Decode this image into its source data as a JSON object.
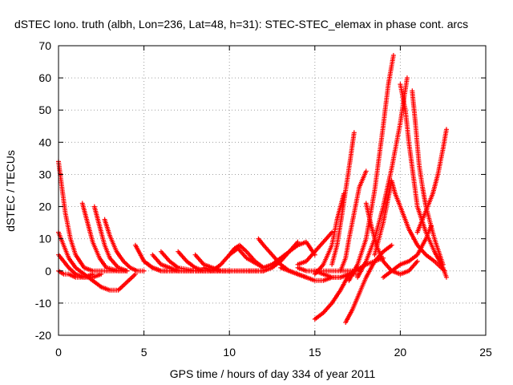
{
  "chart_data": {
    "type": "scatter",
    "title": "dSTEC Iono. truth (albh, Lon=236, Lat=48, h=31): STEC-STEC_elemax in phase cont. arcs",
    "xlabel": "GPS time / hours of day 334 of year 2011",
    "ylabel": "dSTEC  / TECUs",
    "xlim": [
      0,
      25
    ],
    "ylim": [
      -20,
      70
    ],
    "xticks": [
      0,
      5,
      10,
      15,
      20,
      25
    ],
    "yticks": [
      -20,
      -10,
      0,
      10,
      20,
      30,
      40,
      50,
      60,
      70
    ],
    "grid": true,
    "marker": "+",
    "color": "#ff0000",
    "series": [
      {
        "x": [
          0.0,
          0.2,
          0.4,
          0.7,
          1.0,
          1.5,
          2.0,
          3.0,
          4.0
        ],
        "y": [
          34,
          26,
          18,
          10,
          5,
          1,
          0,
          0,
          0
        ]
      },
      {
        "x": [
          0.0,
          0.3,
          0.6,
          1.0,
          1.5,
          2.0,
          2.5,
          3.0,
          3.5,
          4.5
        ],
        "y": [
          12,
          8,
          4,
          1,
          -1,
          -3,
          -5,
          -6,
          -6,
          -1
        ]
      },
      {
        "x": [
          0.0,
          0.3,
          0.6,
          1.0,
          1.5,
          2.0,
          2.5
        ],
        "y": [
          5,
          3,
          1,
          -1,
          -2,
          -2,
          -1
        ]
      },
      {
        "x": [
          0.0,
          0.3,
          0.6,
          1.0,
          1.5,
          2.0
        ],
        "y": [
          0,
          -1,
          -1,
          -2,
          -2,
          -1
        ]
      },
      {
        "x": [
          1.4,
          1.7,
          2.0,
          2.4,
          2.8,
          3.5,
          4.0
        ],
        "y": [
          21,
          15,
          9,
          4,
          1,
          0,
          0
        ]
      },
      {
        "x": [
          2.1,
          2.4,
          2.7,
          3.0,
          3.5,
          4.0
        ],
        "y": [
          20,
          14,
          8,
          4,
          1,
          0
        ]
      },
      {
        "x": [
          2.7,
          3.0,
          3.4,
          3.8,
          4.2,
          4.6,
          5.0
        ],
        "y": [
          16,
          11,
          6,
          3,
          1,
          0,
          0
        ]
      },
      {
        "x": [
          4.5,
          5.0,
          5.5,
          6.0,
          7.0,
          8.0,
          9.0
        ],
        "y": [
          8,
          3,
          1,
          0,
          0,
          0,
          0
        ]
      },
      {
        "x": [
          5.0,
          5.5,
          6.0,
          7.0,
          8.0,
          9.0,
          10.0
        ],
        "y": [
          3,
          1,
          0,
          0,
          0,
          0,
          0
        ]
      },
      {
        "x": [
          5.5,
          6.0,
          6.5,
          7.0,
          8.0,
          9.0
        ],
        "y": [
          5,
          2,
          1,
          0,
          0,
          0
        ]
      },
      {
        "x": [
          6.0,
          6.5,
          7.0,
          8.0,
          9.0,
          10.0
        ],
        "y": [
          6,
          3,
          1,
          0,
          0,
          0
        ]
      },
      {
        "x": [
          7.0,
          7.5,
          8.0,
          8.5,
          9.0,
          10.0
        ],
        "y": [
          6,
          3,
          1,
          0,
          0,
          0
        ]
      },
      {
        "x": [
          8.0,
          8.5,
          9.0,
          9.5,
          10.0,
          11.0,
          12.0
        ],
        "y": [
          5,
          2,
          1,
          0,
          0,
          0,
          0
        ]
      },
      {
        "x": [
          8.5,
          9.0,
          9.5,
          10.0,
          10.5,
          11.0,
          12.0
        ],
        "y": [
          1,
          0,
          0,
          0,
          0,
          0,
          0
        ]
      },
      {
        "x": [
          9.0,
          9.5,
          10.0,
          10.5,
          11.0,
          12.0
        ],
        "y": [
          0,
          2,
          5,
          7,
          4,
          1
        ]
      },
      {
        "x": [
          10.0,
          10.3,
          10.6,
          11.0,
          11.5,
          12.0
        ],
        "y": [
          5,
          7,
          8,
          6,
          3,
          1
        ]
      },
      {
        "x": [
          11.0,
          11.5,
          12.0,
          12.5,
          13.0,
          13.5,
          14.0
        ],
        "y": [
          0,
          0,
          0,
          1,
          3,
          6,
          9
        ]
      },
      {
        "x": [
          11.7,
          12.0,
          12.5,
          13.0,
          13.5,
          14.0,
          14.5
        ],
        "y": [
          10,
          8,
          5,
          2,
          0,
          -1,
          -2
        ]
      },
      {
        "x": [
          12.0,
          12.5,
          13.0,
          13.5,
          14.0,
          14.5,
          15.0
        ],
        "y": [
          1,
          2,
          4,
          6,
          8,
          9,
          5
        ]
      },
      {
        "x": [
          13.0,
          13.5,
          14.0,
          14.5,
          15.0,
          15.5,
          16.0,
          16.5
        ],
        "y": [
          1,
          0,
          -1,
          -2,
          -3,
          -3,
          -2,
          -2
        ]
      },
      {
        "x": [
          14.0,
          14.5,
          15.0,
          15.5,
          16.0,
          16.5,
          17.0,
          17.5
        ],
        "y": [
          1,
          0,
          0,
          0,
          0,
          0,
          0,
          0
        ]
      },
      {
        "x": [
          14.0,
          14.5,
          15.0,
          15.5,
          16.0
        ],
        "y": [
          2,
          3,
          6,
          9,
          12
        ]
      },
      {
        "x": [
          15.0,
          15.5,
          16.0,
          16.3,
          16.7
        ],
        "y": [
          -1,
          2,
          8,
          16,
          24
        ]
      },
      {
        "x": [
          15.0,
          15.5,
          16.0,
          16.5,
          17.0,
          17.5
        ],
        "y": [
          0,
          -1,
          -2,
          -2,
          -1,
          -1
        ]
      },
      {
        "x": [
          15.0,
          15.5,
          16.0,
          16.5,
          17.0,
          18.0,
          19.0
        ],
        "y": [
          -15,
          -13,
          -10,
          -6,
          -1,
          2,
          4
        ]
      },
      {
        "x": [
          16.0,
          16.3,
          16.6,
          17.0,
          17.3
        ],
        "y": [
          2,
          8,
          18,
          32,
          43
        ]
      },
      {
        "x": [
          16.5,
          16.8,
          17.0,
          17.3,
          17.6,
          18.0
        ],
        "y": [
          0,
          4,
          10,
          18,
          26,
          31
        ]
      },
      {
        "x": [
          16.8,
          17.2,
          17.6,
          18.0,
          18.5,
          19.0,
          19.5
        ],
        "y": [
          -16,
          -12,
          -7,
          -2,
          3,
          6,
          8
        ]
      },
      {
        "x": [
          17.0,
          17.5,
          18.0,
          18.5,
          19.0,
          19.3,
          19.6
        ],
        "y": [
          -3,
          2,
          10,
          25,
          45,
          58,
          67
        ]
      },
      {
        "x": [
          17.5,
          18.0,
          18.5,
          19.0,
          19.5,
          20.0,
          20.4
        ],
        "y": [
          -2,
          3,
          10,
          20,
          32,
          46,
          60
        ]
      },
      {
        "x": [
          18.0,
          18.3,
          18.6,
          19.0,
          19.5,
          20.0,
          20.5,
          21.0
        ],
        "y": [
          21,
          14,
          8,
          3,
          0,
          -1,
          0,
          3
        ]
      },
      {
        "x": [
          18.5,
          19.0,
          19.5,
          19.7,
          20.0,
          20.5,
          21.0,
          21.5,
          22.0,
          22.6
        ],
        "y": [
          5,
          15,
          28,
          24,
          20,
          13,
          8,
          5,
          3,
          0
        ]
      },
      {
        "x": [
          20.0,
          20.3,
          20.5,
          20.8,
          21.0,
          21.5,
          22.0,
          22.5,
          22.7
        ],
        "y": [
          58,
          50,
          40,
          28,
          20,
          12,
          6,
          1,
          -2
        ]
      },
      {
        "x": [
          20.7,
          20.9,
          21.1,
          21.3,
          21.5,
          22.0,
          22.5
        ],
        "y": [
          56,
          45,
          33,
          26,
          20,
          10,
          2
        ]
      },
      {
        "x": [
          21.0,
          21.3,
          21.6,
          21.9,
          22.2,
          22.5,
          22.7
        ],
        "y": [
          12,
          16,
          20,
          24,
          30,
          38,
          44
        ]
      },
      {
        "x": [
          19.0,
          19.5,
          20.0,
          20.5,
          21.0,
          21.5,
          21.8
        ],
        "y": [
          -2,
          0,
          2,
          3,
          5,
          10,
          14
        ]
      }
    ]
  }
}
